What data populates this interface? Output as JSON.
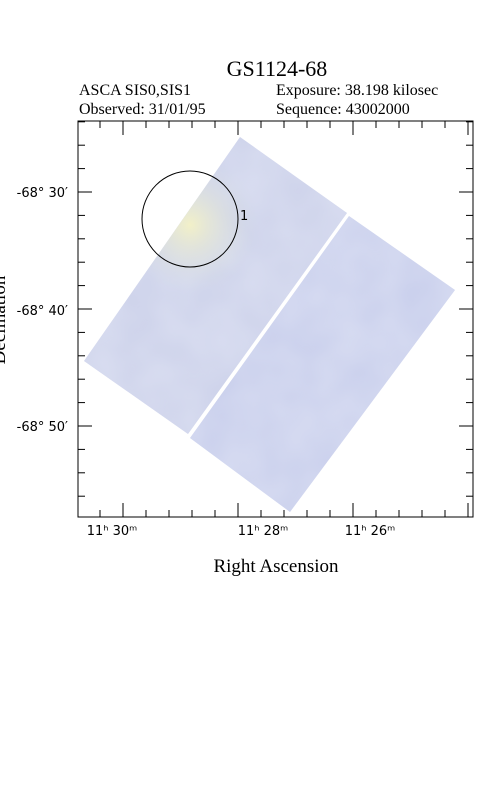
{
  "header": {
    "title": "GS1124-68",
    "instrument": "ASCA SIS0,SIS1",
    "exposure": "Exposure: 38.198 kilosec",
    "observed": "Observed: 31/01/95",
    "sequence": "Sequence: 43002000"
  },
  "axes": {
    "x_label": "Right Ascension",
    "y_label": "Declination",
    "x_ticks": [
      "11ʰ 30ᵐ",
      "11ʰ 28ᵐ",
      "11ʰ 26ᵐ"
    ],
    "y_ticks": [
      "-68° 30′",
      "-68° 40′",
      "-68° 50′"
    ]
  },
  "sources": [
    {
      "label": "1"
    }
  ]
}
